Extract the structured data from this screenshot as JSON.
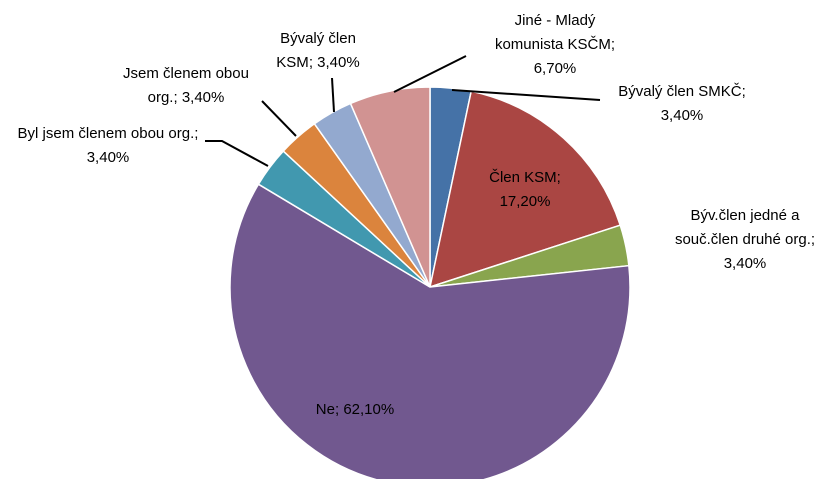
{
  "chart_data": {
    "type": "pie",
    "categories": [
      "Bývalý člen SMKČ",
      "Člen KSM",
      "Býv.člen jedné a souč.člen druhé org.",
      "Ne",
      "Byl jsem členem obou org.",
      "Jsem členem obou org.",
      "Bývalý člen KSM",
      "Jiné - Mladý komunista KSČM"
    ],
    "values": [
      3.4,
      17.2,
      3.4,
      62.1,
      3.4,
      3.4,
      3.4,
      6.7
    ],
    "value_labels": [
      "3,40%",
      "17,20%",
      "3,40%",
      "62,10%",
      "3,40%",
      "3,40%",
      "3,40%",
      "6,70%"
    ],
    "colors": [
      "#4572a7",
      "#aa4643",
      "#89a54e",
      "#71588f",
      "#4198af",
      "#db843d",
      "#93a9cf",
      "#d19392"
    ],
    "separator": "; "
  }
}
